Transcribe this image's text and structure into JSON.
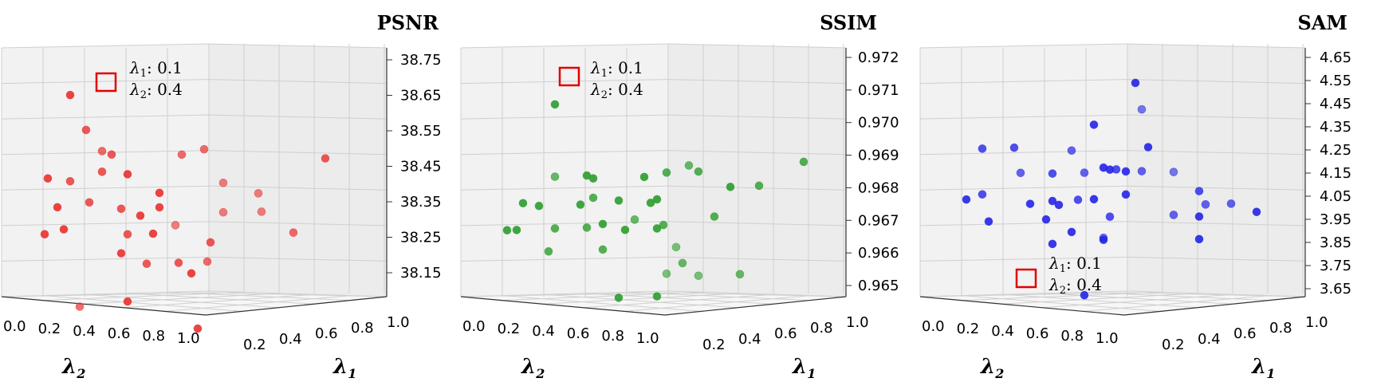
{
  "chart_data": [
    {
      "type": "scatter",
      "title": "PSNR",
      "color": "#e8302f",
      "xlabel": "λ2",
      "ylabel": "λ1",
      "zlabel": "PSNR",
      "x_ticks": [
        "0.0",
        "0.2",
        "0.4",
        "0.6",
        "0.8",
        "1.0"
      ],
      "y_ticks": [
        "0.2",
        "0.4",
        "0.6",
        "0.8",
        "1.0"
      ],
      "z_ticks": [
        "38.75",
        "38.65",
        "38.55",
        "38.45",
        "38.35",
        "38.25",
        "38.15"
      ],
      "zlim": [
        38.1,
        38.75
      ],
      "grid": true,
      "highlight": {
        "lambda1_label": "λ1",
        "lambda1_value": "0.1",
        "lambda2_label": "λ2",
        "lambda2_value": "0.4",
        "box_color": "#e00000"
      },
      "points": [
        {
          "x": 0.12,
          "y": 0.65,
          "z": 38.67,
          "depth": 0.1
        },
        {
          "x": 0.17,
          "y": 0.8,
          "z": 38.58,
          "depth": 0.2
        },
        {
          "x": 0.22,
          "y": 0.72,
          "z": 38.52,
          "depth": 0.3
        },
        {
          "x": 0.25,
          "y": 0.7,
          "z": 38.51,
          "depth": 0.2
        },
        {
          "x": 0.05,
          "y": 0.85,
          "z": 38.45,
          "depth": 0.1
        },
        {
          "x": 0.12,
          "y": 0.78,
          "z": 38.44,
          "depth": 0.2
        },
        {
          "x": 0.22,
          "y": 0.6,
          "z": 38.46,
          "depth": 0.2
        },
        {
          "x": 0.3,
          "y": 0.5,
          "z": 38.45,
          "depth": 0.1
        },
        {
          "x": 0.47,
          "y": 0.4,
          "z": 38.5,
          "depth": 0.3
        },
        {
          "x": 0.54,
          "y": 0.26,
          "z": 38.51,
          "depth": 0.3
        },
        {
          "x": 0.92,
          "y": 0.1,
          "z": 38.48,
          "depth": 0.2
        },
        {
          "x": 0.08,
          "y": 0.8,
          "z": 38.37,
          "depth": 0.1
        },
        {
          "x": 0.18,
          "y": 0.7,
          "z": 38.38,
          "depth": 0.2
        },
        {
          "x": 0.28,
          "y": 0.62,
          "z": 38.36,
          "depth": 0.2
        },
        {
          "x": 0.34,
          "y": 0.58,
          "z": 38.34,
          "depth": 0.1
        },
        {
          "x": 0.4,
          "y": 0.5,
          "z": 38.36,
          "depth": 0.1
        },
        {
          "x": 0.6,
          "y": 0.3,
          "z": 38.42,
          "depth": 0.4
        },
        {
          "x": 0.71,
          "y": 0.25,
          "z": 38.39,
          "depth": 0.4
        },
        {
          "x": 0.04,
          "y": 0.9,
          "z": 38.3,
          "depth": 0.1
        },
        {
          "x": 0.1,
          "y": 0.8,
          "z": 38.31,
          "depth": 0.1
        },
        {
          "x": 0.3,
          "y": 0.6,
          "z": 38.29,
          "depth": 0.2
        },
        {
          "x": 0.38,
          "y": 0.55,
          "z": 38.29,
          "depth": 0.1
        },
        {
          "x": 0.45,
          "y": 0.45,
          "z": 38.31,
          "depth": 0.4
        },
        {
          "x": 0.6,
          "y": 0.3,
          "z": 38.34,
          "depth": 0.4
        },
        {
          "x": 0.72,
          "y": 0.25,
          "z": 38.34,
          "depth": 0.4
        },
        {
          "x": 0.28,
          "y": 0.65,
          "z": 38.24,
          "depth": 0.1
        },
        {
          "x": 0.36,
          "y": 0.6,
          "z": 38.21,
          "depth": 0.2
        },
        {
          "x": 0.46,
          "y": 0.52,
          "z": 38.21,
          "depth": 0.2
        },
        {
          "x": 0.5,
          "y": 0.48,
          "z": 38.18,
          "depth": 0.1
        },
        {
          "x": 0.56,
          "y": 0.35,
          "z": 38.26,
          "depth": 0.2
        },
        {
          "x": 0.82,
          "y": 0.15,
          "z": 38.28,
          "depth": 0.3
        },
        {
          "x": 0.15,
          "y": 0.8,
          "z": 38.1,
          "depth": 0.3
        },
        {
          "x": 0.3,
          "y": 0.68,
          "z": 38.11,
          "depth": 0.1
        },
        {
          "x": 0.52,
          "y": 0.48,
          "z": 38.03,
          "depth": 0.1
        },
        {
          "x": 0.55,
          "y": 0.42,
          "z": 38.21,
          "depth": 0.3
        },
        {
          "x": 0.4,
          "y": 0.52,
          "z": 38.4,
          "depth": 0.1
        }
      ]
    },
    {
      "type": "scatter",
      "title": "SSIM",
      "color": "#2c9c2c",
      "xlabel": "λ2",
      "ylabel": "λ1",
      "zlabel": "SSIM",
      "x_ticks": [
        "0.0",
        "0.2",
        "0.4",
        "0.6",
        "0.8",
        "1.0"
      ],
      "y_ticks": [
        "0.2",
        "0.4",
        "0.6",
        "0.8",
        "1.0"
      ],
      "z_ticks": [
        "0.972",
        "0.971",
        "0.970",
        "0.969",
        "0.968",
        "0.967",
        "0.966",
        "0.965"
      ],
      "zlim": [
        0.9648,
        0.9722
      ],
      "grid": true,
      "highlight": {
        "lambda1_label": "λ1",
        "lambda1_value": "0.1",
        "lambda2_label": "λ2",
        "lambda2_value": "0.4",
        "box_color": "#e00000"
      },
      "points": [
        {
          "x": 0.2,
          "y": 0.65,
          "z": 0.971,
          "depth": 0.1
        },
        {
          "x": 0.2,
          "y": 0.75,
          "z": 0.9688,
          "depth": 0.3
        },
        {
          "x": 0.3,
          "y": 0.65,
          "z": 0.9688,
          "depth": 0.1
        },
        {
          "x": 0.32,
          "y": 0.62,
          "z": 0.9687,
          "depth": 0.1
        },
        {
          "x": 0.48,
          "y": 0.5,
          "z": 0.9687,
          "depth": 0.1
        },
        {
          "x": 0.55,
          "y": 0.4,
          "z": 0.9688,
          "depth": 0.2
        },
        {
          "x": 0.62,
          "y": 0.35,
          "z": 0.969,
          "depth": 0.3
        },
        {
          "x": 0.65,
          "y": 0.32,
          "z": 0.9688,
          "depth": 0.2
        },
        {
          "x": 0.98,
          "y": 0.05,
          "z": 0.969,
          "depth": 0.2
        },
        {
          "x": 0.1,
          "y": 0.8,
          "z": 0.968,
          "depth": 0.1
        },
        {
          "x": 0.15,
          "y": 0.76,
          "z": 0.9679,
          "depth": 0.1
        },
        {
          "x": 0.28,
          "y": 0.65,
          "z": 0.9679,
          "depth": 0.1
        },
        {
          "x": 0.32,
          "y": 0.62,
          "z": 0.9681,
          "depth": 0.2
        },
        {
          "x": 0.4,
          "y": 0.58,
          "z": 0.968,
          "depth": 0.1
        },
        {
          "x": 0.5,
          "y": 0.5,
          "z": 0.9679,
          "depth": 0.1
        },
        {
          "x": 0.52,
          "y": 0.48,
          "z": 0.968,
          "depth": 0.1
        },
        {
          "x": 0.75,
          "y": 0.25,
          "z": 0.9683,
          "depth": 0.1
        },
        {
          "x": 0.84,
          "y": 0.15,
          "z": 0.9683,
          "depth": 0.2
        },
        {
          "x": 0.05,
          "y": 0.9,
          "z": 0.9672,
          "depth": 0.1
        },
        {
          "x": 0.08,
          "y": 0.88,
          "z": 0.9672,
          "depth": 0.1
        },
        {
          "x": 0.2,
          "y": 0.75,
          "z": 0.9672,
          "depth": 0.2
        },
        {
          "x": 0.3,
          "y": 0.68,
          "z": 0.9672,
          "depth": 0.2
        },
        {
          "x": 0.35,
          "y": 0.65,
          "z": 0.9673,
          "depth": 0.1
        },
        {
          "x": 0.42,
          "y": 0.6,
          "z": 0.9671,
          "depth": 0.1
        },
        {
          "x": 0.45,
          "y": 0.55,
          "z": 0.9674,
          "depth": 0.3
        },
        {
          "x": 0.52,
          "y": 0.48,
          "z": 0.9671,
          "depth": 0.1
        },
        {
          "x": 0.54,
          "y": 0.46,
          "z": 0.9672,
          "depth": 0.2
        },
        {
          "x": 0.7,
          "y": 0.3,
          "z": 0.9674,
          "depth": 0.2
        },
        {
          "x": 0.18,
          "y": 0.78,
          "z": 0.9665,
          "depth": 0.2
        },
        {
          "x": 0.35,
          "y": 0.62,
          "z": 0.9665,
          "depth": 0.2
        },
        {
          "x": 0.58,
          "y": 0.42,
          "z": 0.9665,
          "depth": 0.4
        },
        {
          "x": 0.6,
          "y": 0.4,
          "z": 0.966,
          "depth": 0.3
        },
        {
          "x": 0.55,
          "y": 0.48,
          "z": 0.9657,
          "depth": 0.4
        },
        {
          "x": 0.65,
          "y": 0.38,
          "z": 0.9656,
          "depth": 0.4
        },
        {
          "x": 0.78,
          "y": 0.25,
          "z": 0.9656,
          "depth": 0.3
        },
        {
          "x": 0.4,
          "y": 0.6,
          "z": 0.965,
          "depth": 0.1
        },
        {
          "x": 0.52,
          "y": 0.48,
          "z": 0.965,
          "depth": 0.1
        }
      ]
    },
    {
      "type": "scatter",
      "title": "SAM",
      "color": "#2424e8",
      "xlabel": "λ2",
      "ylabel": "λ1",
      "zlabel": "SAM",
      "x_ticks": [
        "0.0",
        "0.2",
        "0.4",
        "0.6",
        "0.8",
        "1.0"
      ],
      "y_ticks": [
        "0.2",
        "0.4",
        "0.6",
        "0.8",
        "1.0"
      ],
      "z_ticks": [
        "4.65",
        "4.55",
        "4.45",
        "4.35",
        "4.25",
        "4.15",
        "4.05",
        "3.95",
        "3.85",
        "3.75",
        "3.65"
      ],
      "zlim": [
        3.62,
        4.68
      ],
      "grid": true,
      "highlight": {
        "lambda1_label": "λ1",
        "lambda1_value": "0.1",
        "lambda2_label": "λ2",
        "lambda2_value": "0.4",
        "box_color": "#e00000"
      },
      "points": [
        {
          "x": 0.58,
          "y": 0.4,
          "z": 4.59,
          "depth": 0.1
        },
        {
          "x": 0.6,
          "y": 0.35,
          "z": 4.47,
          "depth": 0.4
        },
        {
          "x": 0.45,
          "y": 0.5,
          "z": 4.41,
          "depth": 0.1
        },
        {
          "x": 0.1,
          "y": 0.8,
          "z": 4.32,
          "depth": 0.2
        },
        {
          "x": 0.2,
          "y": 0.72,
          "z": 4.32,
          "depth": 0.2
        },
        {
          "x": 0.38,
          "y": 0.58,
          "z": 4.3,
          "depth": 0.3
        },
        {
          "x": 0.62,
          "y": 0.3,
          "z": 4.3,
          "depth": 0.1
        },
        {
          "x": 0.22,
          "y": 0.75,
          "z": 4.21,
          "depth": 0.3
        },
        {
          "x": 0.32,
          "y": 0.62,
          "z": 4.2,
          "depth": 0.2
        },
        {
          "x": 0.42,
          "y": 0.55,
          "z": 4.2,
          "depth": 0.3
        },
        {
          "x": 0.48,
          "y": 0.5,
          "z": 4.22,
          "depth": 0.1
        },
        {
          "x": 0.5,
          "y": 0.48,
          "z": 4.21,
          "depth": 0.1
        },
        {
          "x": 0.52,
          "y": 0.46,
          "z": 4.21,
          "depth": 0.2
        },
        {
          "x": 0.55,
          "y": 0.44,
          "z": 4.2,
          "depth": 0.1
        },
        {
          "x": 0.6,
          "y": 0.42,
          "z": 4.2,
          "depth": 0.3
        },
        {
          "x": 0.7,
          "y": 0.3,
          "z": 4.19,
          "depth": 0.4
        },
        {
          "x": 0.05,
          "y": 0.9,
          "z": 4.1,
          "depth": 0.1
        },
        {
          "x": 0.1,
          "y": 0.85,
          "z": 4.12,
          "depth": 0.2
        },
        {
          "x": 0.25,
          "y": 0.7,
          "z": 4.07,
          "depth": 0.1
        },
        {
          "x": 0.32,
          "y": 0.65,
          "z": 4.08,
          "depth": 0.1
        },
        {
          "x": 0.34,
          "y": 0.6,
          "z": 4.06,
          "depth": 0.1
        },
        {
          "x": 0.4,
          "y": 0.55,
          "z": 4.08,
          "depth": 0.2
        },
        {
          "x": 0.45,
          "y": 0.5,
          "z": 4.08,
          "depth": 0.1
        },
        {
          "x": 0.55,
          "y": 0.48,
          "z": 4.1,
          "depth": 0.1
        },
        {
          "x": 0.5,
          "y": 0.45,
          "z": 4.0,
          "depth": 0.2
        },
        {
          "x": 0.78,
          "y": 0.2,
          "z": 4.1,
          "depth": 0.2
        },
        {
          "x": 0.8,
          "y": 0.18,
          "z": 4.04,
          "depth": 0.3
        },
        {
          "x": 0.88,
          "y": 0.12,
          "z": 4.04,
          "depth": 0.3
        },
        {
          "x": 0.12,
          "y": 0.85,
          "z": 4.0,
          "depth": 0.1
        },
        {
          "x": 0.3,
          "y": 0.68,
          "z": 4.0,
          "depth": 0.1
        },
        {
          "x": 0.7,
          "y": 0.3,
          "z": 4.0,
          "depth": 0.3
        },
        {
          "x": 0.78,
          "y": 0.25,
          "z": 3.99,
          "depth": 0.1
        },
        {
          "x": 0.96,
          "y": 0.05,
          "z": 4.0,
          "depth": 0.1
        },
        {
          "x": 0.38,
          "y": 0.6,
          "z": 3.94,
          "depth": 0.1
        },
        {
          "x": 0.48,
          "y": 0.52,
          "z": 3.91,
          "depth": 0.3
        },
        {
          "x": 0.48,
          "y": 0.5,
          "z": 3.9,
          "depth": 0.1
        },
        {
          "x": 0.32,
          "y": 0.65,
          "z": 3.89,
          "depth": 0.1
        },
        {
          "x": 0.78,
          "y": 0.25,
          "z": 3.89,
          "depth": 0.1
        },
        {
          "x": 0.42,
          "y": 0.6,
          "z": 3.66,
          "depth": 0.1
        }
      ]
    }
  ]
}
